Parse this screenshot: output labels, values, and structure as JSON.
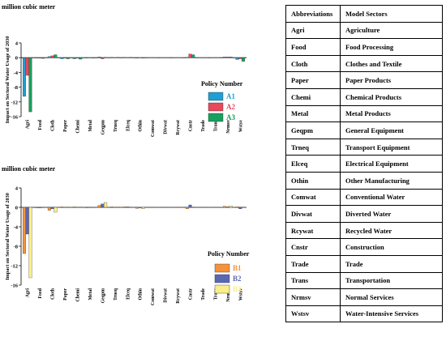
{
  "colors": {
    "A1": "#1f9fd2",
    "A2": "#e8475c",
    "A3": "#17a05d",
    "B1": "#f7923a",
    "B2": "#5a68b4",
    "B3": "#fbee8a"
  },
  "categories": [
    "Agri",
    "Food",
    "Cloth",
    "Paper",
    "Chemi",
    "Metal",
    "Geqpm",
    "Trneq",
    "Elceq",
    "Othin",
    "Comwat",
    "Divwat",
    "Rcywat",
    "Cnstr",
    "Trade",
    "Trans",
    "Nrmsv",
    "Wstsv"
  ],
  "chart_data": [
    {
      "type": "bar",
      "unit_label": "million cubic meter",
      "ylabel": "Impact on Sectoral Water Usage of 2030",
      "ylim": [
        -16,
        4
      ],
      "yticks": [
        -16,
        -12,
        -8,
        -4,
        0,
        4
      ],
      "legend_title": "Policy Number",
      "legend_position": "right",
      "categories": [
        "Agri",
        "Food",
        "Cloth",
        "Paper",
        "Chemi",
        "Metal",
        "Geqpm",
        "Trneq",
        "Elceq",
        "Othin",
        "Comwat",
        "Divwat",
        "Rcywat",
        "Cnstr",
        "Trade",
        "Trans",
        "Nrmsv",
        "Wstsv"
      ],
      "series": [
        {
          "name": "A1",
          "values": [
            -10.5,
            -0.1,
            0.3,
            -0.3,
            -0.3,
            -0.1,
            0.2,
            0.1,
            0.1,
            -0.1,
            0,
            0,
            0,
            0.1,
            0,
            0,
            0.2,
            -0.5
          ]
        },
        {
          "name": "A2",
          "values": [
            -4.8,
            -0.1,
            0.5,
            -0.1,
            -0.1,
            0,
            -0.3,
            0,
            0,
            0,
            0,
            0,
            0,
            1.0,
            0,
            0,
            0.2,
            -0.3
          ]
        },
        {
          "name": "A3",
          "values": [
            -14.7,
            -0.2,
            0.8,
            -0.3,
            -0.4,
            -0.1,
            0.1,
            0.1,
            0.1,
            -0.1,
            0,
            0,
            0,
            0.8,
            0,
            0,
            0.2,
            -1.0
          ]
        }
      ]
    },
    {
      "type": "bar",
      "unit_label": "million cubic meter",
      "ylabel": "Impact on Sectoral Water Usage of 2030",
      "ylim": [
        -16,
        4
      ],
      "yticks": [
        -16,
        -12,
        -8,
        -4,
        0,
        4
      ],
      "legend_title": "Policy Number",
      "legend_position": "bottom-right",
      "categories": [
        "Agri",
        "Food",
        "Cloth",
        "Paper",
        "Chemi",
        "Metal",
        "Geqpm",
        "Trneq",
        "Elceq",
        "Othin",
        "Comwat",
        "Divwat",
        "Rcywat",
        "Cnstr",
        "Trade",
        "Trans",
        "Nrmsv",
        "Wstsv"
      ],
      "series": [
        {
          "name": "B1",
          "values": [
            -9.5,
            -0.1,
            -0.6,
            0.1,
            0.1,
            -0.1,
            0.4,
            0.1,
            0.1,
            -0.2,
            0,
            0,
            0,
            -0.3,
            0,
            0,
            0.2,
            0.1
          ]
        },
        {
          "name": "B2",
          "values": [
            -5.5,
            -0.1,
            -0.3,
            0,
            0,
            0,
            0.7,
            0,
            0.1,
            -0.1,
            0,
            0,
            0,
            0.5,
            0,
            0,
            0.1,
            -0.3
          ]
        },
        {
          "name": "B3",
          "values": [
            -14.5,
            -0.1,
            -1.0,
            0.1,
            0.1,
            -0.1,
            1.0,
            0.1,
            0.1,
            -0.3,
            0,
            0,
            0,
            0.1,
            0,
            0,
            0.3,
            -0.1
          ]
        }
      ]
    }
  ],
  "table": {
    "headers": [
      "Abbreviations",
      "Model Sectors"
    ],
    "rows": [
      [
        "Agri",
        "Agriculture"
      ],
      [
        "Food",
        "Food Processing"
      ],
      [
        "Cloth",
        "Clothes and Textile"
      ],
      [
        "Paper",
        "Paper Products"
      ],
      [
        "Chemi",
        "Chemical Products"
      ],
      [
        "Metal",
        "Metal Products"
      ],
      [
        "Geqpm",
        "General Equipment"
      ],
      [
        "Trneq",
        "Transport Equipment"
      ],
      [
        "Elceq",
        "Electrical Equipment"
      ],
      [
        "Othin",
        "Other Manufacturing"
      ],
      [
        "Comwat",
        "Conventional Water"
      ],
      [
        "Divwat",
        "Diverted Water"
      ],
      [
        "Rcywat",
        "Recycled Water"
      ],
      [
        "Cnstr",
        "Construction"
      ],
      [
        "Trade",
        "Trade"
      ],
      [
        "Trans",
        "Transportation"
      ],
      [
        "Nrmsv",
        "Normal Services"
      ],
      [
        "Wstsv",
        "Water-Intensive Services"
      ]
    ]
  }
}
